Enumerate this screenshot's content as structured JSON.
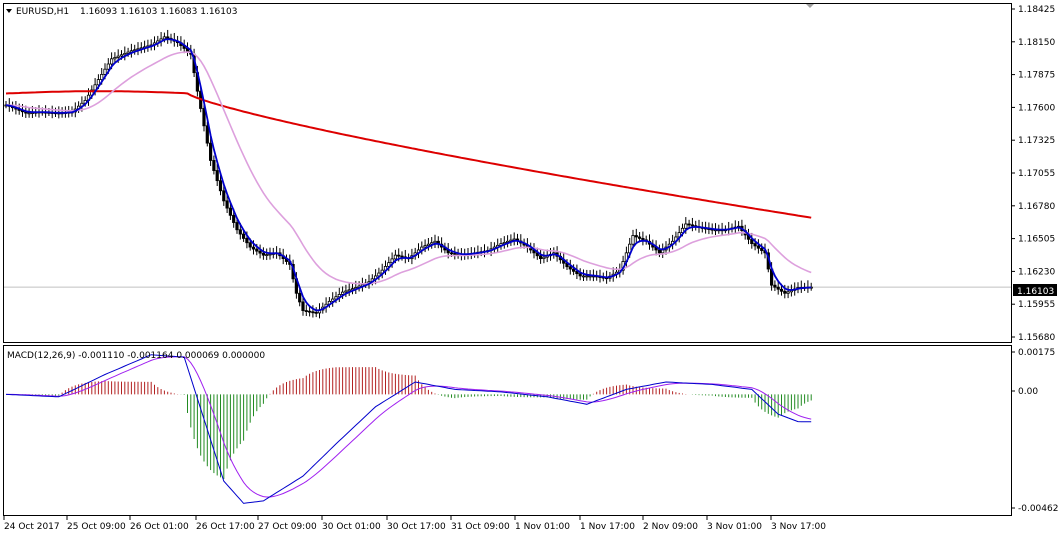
{
  "header": {
    "symbol_timeframe": "EURUSD,H1",
    "ohlc": "1.16093 1.16103 1.16083 1.16103"
  },
  "macd_header": {
    "label": "MACD(12,26,9) -0.001110 -0.001164 0.000069 0.000000"
  },
  "current_price": "1.16103",
  "colors": {
    "candle": "#000000",
    "fast_ma": "#0000CC",
    "medium_ma": "#DDA0DD",
    "slow_ma": "#DD0000",
    "macd_line": "#0000CC",
    "signal_line": "#A020F0",
    "hist_positive": "#B22222",
    "hist_negative": "#228B22",
    "price_line": "#C0C0C0"
  },
  "chart_data": [
    {
      "type": "candlestick",
      "title": "EURUSD,H1",
      "price_axis_ticks": [
        "1.18425",
        "1.18150",
        "1.17875",
        "1.17600",
        "1.17325",
        "1.17055",
        "1.16780",
        "1.16505",
        "1.16230",
        "1.15955",
        "1.15680"
      ],
      "ylim": [
        1.1568,
        1.1852
      ],
      "time_axis_ticks": [
        "24 Oct 2017",
        "25 Oct 09:00",
        "26 Oct 01:00",
        "26 Oct 17:00",
        "27 Oct 09:00",
        "30 Oct 01:00",
        "30 Oct 17:00",
        "31 Oct 09:00",
        "1 Nov 01:00",
        "1 Nov 17:00",
        "2 Nov 09:00",
        "3 Nov 01:00",
        "3 Nov 17:00"
      ],
      "close_anchors": [
        {
          "bar": 0,
          "close": 1.1768
        },
        {
          "bar": 6,
          "close": 1.1761
        },
        {
          "bar": 10,
          "close": 1.1762
        },
        {
          "bar": 16,
          "close": 1.1761
        },
        {
          "bar": 20,
          "close": 1.1762
        },
        {
          "bar": 24,
          "close": 1.1772
        },
        {
          "bar": 28,
          "close": 1.179
        },
        {
          "bar": 32,
          "close": 1.1808
        },
        {
          "bar": 38,
          "close": 1.1815
        },
        {
          "bar": 44,
          "close": 1.182
        },
        {
          "bar": 48,
          "close": 1.1827
        },
        {
          "bar": 52,
          "close": 1.1822
        },
        {
          "bar": 56,
          "close": 1.1812
        },
        {
          "bar": 58,
          "close": 1.178
        },
        {
          "bar": 62,
          "close": 1.172
        },
        {
          "bar": 66,
          "close": 1.1685
        },
        {
          "bar": 70,
          "close": 1.166
        },
        {
          "bar": 74,
          "close": 1.1645
        },
        {
          "bar": 78,
          "close": 1.1638
        },
        {
          "bar": 82,
          "close": 1.164
        },
        {
          "bar": 86,
          "close": 1.163
        },
        {
          "bar": 88,
          "close": 1.1605
        },
        {
          "bar": 90,
          "close": 1.159
        },
        {
          "bar": 94,
          "close": 1.1588
        },
        {
          "bar": 98,
          "close": 1.1598
        },
        {
          "bar": 102,
          "close": 1.1606
        },
        {
          "bar": 106,
          "close": 1.161
        },
        {
          "bar": 110,
          "close": 1.1615
        },
        {
          "bar": 114,
          "close": 1.1625
        },
        {
          "bar": 118,
          "close": 1.1638
        },
        {
          "bar": 122,
          "close": 1.1635
        },
        {
          "bar": 126,
          "close": 1.1645
        },
        {
          "bar": 130,
          "close": 1.165
        },
        {
          "bar": 134,
          "close": 1.164
        },
        {
          "bar": 138,
          "close": 1.1638
        },
        {
          "bar": 142,
          "close": 1.164
        },
        {
          "bar": 146,
          "close": 1.1642
        },
        {
          "bar": 150,
          "close": 1.1648
        },
        {
          "bar": 154,
          "close": 1.1652
        },
        {
          "bar": 158,
          "close": 1.1645
        },
        {
          "bar": 162,
          "close": 1.1635
        },
        {
          "bar": 166,
          "close": 1.164
        },
        {
          "bar": 170,
          "close": 1.1628
        },
        {
          "bar": 174,
          "close": 1.162
        },
        {
          "bar": 178,
          "close": 1.162
        },
        {
          "bar": 182,
          "close": 1.1618
        },
        {
          "bar": 186,
          "close": 1.1625
        },
        {
          "bar": 190,
          "close": 1.1655
        },
        {
          "bar": 194,
          "close": 1.165
        },
        {
          "bar": 198,
          "close": 1.164
        },
        {
          "bar": 202,
          "close": 1.165
        },
        {
          "bar": 206,
          "close": 1.1665
        },
        {
          "bar": 210,
          "close": 1.1662
        },
        {
          "bar": 214,
          "close": 1.166
        },
        {
          "bar": 218,
          "close": 1.166
        },
        {
          "bar": 222,
          "close": 1.1663
        },
        {
          "bar": 226,
          "close": 1.1648
        },
        {
          "bar": 230,
          "close": 1.164
        },
        {
          "bar": 232,
          "close": 1.1612
        },
        {
          "bar": 236,
          "close": 1.1605
        },
        {
          "bar": 240,
          "close": 1.161
        },
        {
          "bar": 244,
          "close": 1.16103
        }
      ]
    },
    {
      "type": "macd",
      "title": "MACD(12,26,9)",
      "value_axis_ticks": [
        "0.00175",
        "0.00",
        "-0.004628"
      ],
      "ylim": [
        -0.004628,
        0.00175
      ],
      "macd_anchors": [
        {
          "bar": 0,
          "v": 0.0
        },
        {
          "bar": 16,
          "v": -0.0001
        },
        {
          "bar": 30,
          "v": 0.0008
        },
        {
          "bar": 44,
          "v": 0.0016
        },
        {
          "bar": 54,
          "v": 0.0015
        },
        {
          "bar": 60,
          "v": -0.001
        },
        {
          "bar": 66,
          "v": -0.0035
        },
        {
          "bar": 72,
          "v": -0.0044
        },
        {
          "bar": 78,
          "v": -0.0043
        },
        {
          "bar": 90,
          "v": -0.0033
        },
        {
          "bar": 100,
          "v": -0.002
        },
        {
          "bar": 112,
          "v": -0.0005
        },
        {
          "bar": 124,
          "v": 0.0005
        },
        {
          "bar": 136,
          "v": 0.0002
        },
        {
          "bar": 150,
          "v": 0.0001
        },
        {
          "bar": 164,
          "v": -0.0001
        },
        {
          "bar": 176,
          "v": -0.0004
        },
        {
          "bar": 188,
          "v": 0.0002
        },
        {
          "bar": 200,
          "v": 0.0005
        },
        {
          "bar": 214,
          "v": 0.0004
        },
        {
          "bar": 226,
          "v": 0.0002
        },
        {
          "bar": 234,
          "v": -0.0008
        },
        {
          "bar": 240,
          "v": -0.0011
        },
        {
          "bar": 244,
          "v": -0.00111
        }
      ]
    }
  ]
}
